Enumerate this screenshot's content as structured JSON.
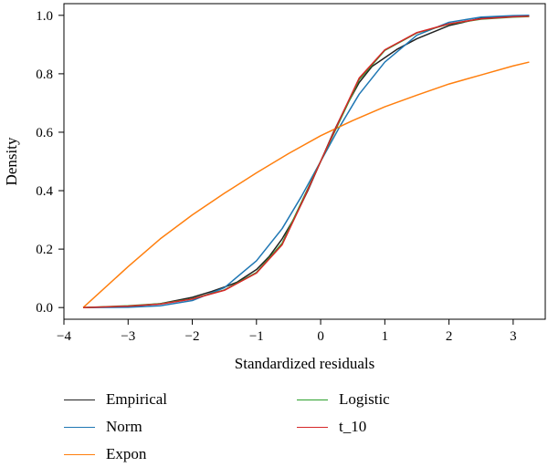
{
  "chart_data": {
    "type": "line",
    "title": "",
    "xlabel": "Standardized residuals",
    "ylabel": "Density",
    "xlim": [
      -4.0,
      3.5
    ],
    "ylim": [
      -0.04,
      1.04
    ],
    "xticks": [
      -4,
      -3,
      -2,
      -1,
      0,
      1,
      2,
      3
    ],
    "xtick_labels": [
      "−4",
      "−3",
      "−2",
      "−1",
      "0",
      "1",
      "2",
      "3"
    ],
    "yticks": [
      0.0,
      0.2,
      0.4,
      0.6,
      0.8,
      1.0
    ],
    "ytick_labels": [
      "0.0",
      "0.2",
      "0.4",
      "0.6",
      "0.8",
      "1.0"
    ],
    "grid": false,
    "legend_position": "bottom",
    "series": [
      {
        "name": "Empirical",
        "color": "#222222",
        "x": [
          -3.7,
          -3.0,
          -2.5,
          -2.0,
          -1.7,
          -1.5,
          -1.3,
          -1.0,
          -0.8,
          -0.6,
          -0.4,
          -0.2,
          0.0,
          0.2,
          0.4,
          0.6,
          0.8,
          1.0,
          1.2,
          1.5,
          2.0,
          2.5,
          3.0,
          3.25
        ],
        "y": [
          0.0,
          0.004,
          0.013,
          0.035,
          0.055,
          0.07,
          0.087,
          0.13,
          0.175,
          0.235,
          0.31,
          0.4,
          0.5,
          0.6,
          0.69,
          0.77,
          0.825,
          0.855,
          0.885,
          0.92,
          0.965,
          0.99,
          0.997,
          0.998
        ]
      },
      {
        "name": "Norm",
        "color": "#1f77b4",
        "x": [
          -3.7,
          -3.0,
          -2.5,
          -2.0,
          -1.5,
          -1.0,
          -0.6,
          -0.3,
          0.0,
          0.3,
          0.6,
          1.0,
          1.5,
          2.0,
          2.5,
          3.0,
          3.25
        ],
        "y": [
          0.0,
          0.001,
          0.006,
          0.024,
          0.068,
          0.16,
          0.27,
          0.38,
          0.5,
          0.62,
          0.73,
          0.84,
          0.932,
          0.976,
          0.994,
          0.999,
          1.0
        ]
      },
      {
        "name": "Expon",
        "color": "#ff7f0e",
        "x": [
          -3.7,
          -3.0,
          -2.5,
          -2.0,
          -1.5,
          -1.0,
          -0.5,
          0.0,
          0.5,
          1.0,
          1.5,
          2.0,
          2.5,
          3.0,
          3.25
        ],
        "y": [
          0.0,
          0.14,
          0.235,
          0.317,
          0.391,
          0.461,
          0.527,
          0.588,
          0.64,
          0.687,
          0.727,
          0.765,
          0.796,
          0.827,
          0.84
        ]
      },
      {
        "name": "Logistic",
        "color": "#2ca02c",
        "x": [
          -3.7,
          -3.0,
          -2.5,
          -2.0,
          -1.5,
          -1.0,
          -0.6,
          -0.3,
          0.0,
          0.3,
          0.6,
          1.0,
          1.5,
          2.0,
          2.5,
          3.0,
          3.25
        ],
        "y": [
          0.0,
          0.006,
          0.013,
          0.03,
          0.06,
          0.12,
          0.22,
          0.36,
          0.5,
          0.64,
          0.78,
          0.88,
          0.94,
          0.97,
          0.987,
          0.994,
          0.996
        ]
      },
      {
        "name": "t_10",
        "color": "#d62728",
        "x": [
          -3.7,
          -3.0,
          -2.5,
          -2.0,
          -1.5,
          -1.0,
          -0.6,
          -0.3,
          0.0,
          0.3,
          0.6,
          1.0,
          1.5,
          2.0,
          2.5,
          3.0,
          3.25
        ],
        "y": [
          0.0,
          0.005,
          0.012,
          0.029,
          0.059,
          0.118,
          0.215,
          0.355,
          0.5,
          0.645,
          0.785,
          0.882,
          0.941,
          0.971,
          0.988,
          0.995,
          0.997
        ]
      }
    ]
  }
}
